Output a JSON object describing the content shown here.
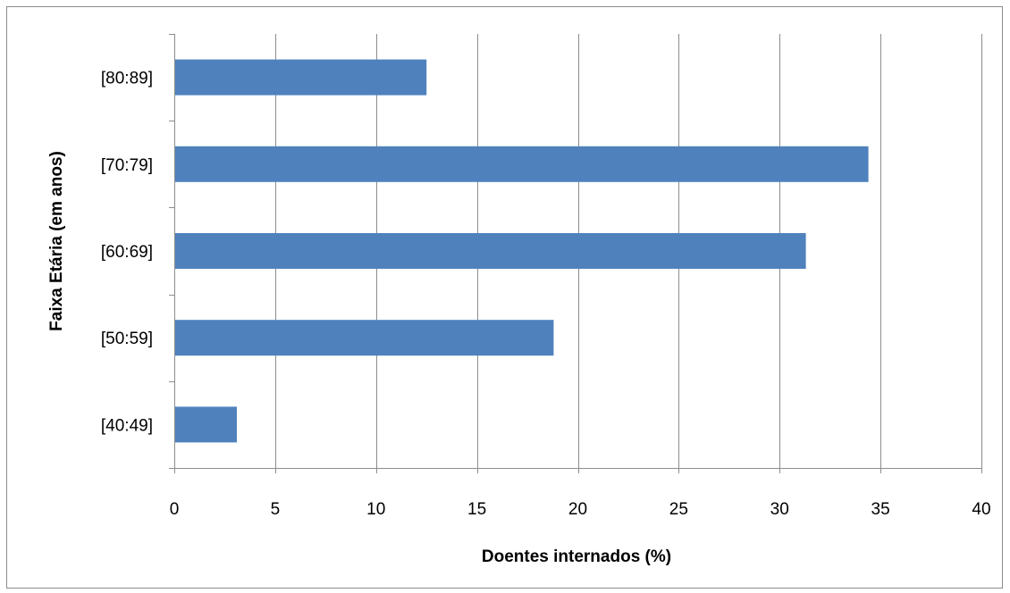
{
  "chart_data": {
    "type": "bar",
    "orientation": "horizontal",
    "categories": [
      "[40:49]",
      "[50:59]",
      "[60:69]",
      "[70:79]",
      "[80:89]"
    ],
    "values": [
      3.1,
      18.8,
      31.3,
      34.4,
      12.5
    ],
    "xlabel": "Doentes internados (%)",
    "ylabel": "Faixa Etária (em anos)",
    "xlim": [
      0,
      40
    ],
    "xticks": [
      "0",
      "5",
      "10",
      "15",
      "20",
      "25",
      "30",
      "35",
      "40"
    ],
    "grid": "vertical",
    "legend": "none",
    "bar_color": "#4f81bd",
    "grid_color": "#8c8c8c"
  }
}
